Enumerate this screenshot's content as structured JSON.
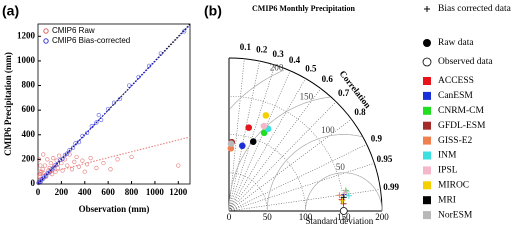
{
  "chart_data": [
    {
      "type": "scatter",
      "panel_label": "(a)",
      "xlabel": "Observation (mm)",
      "ylabel": "CMIP6 Precipitation (mm)",
      "xlim": [
        0,
        1300
      ],
      "ylim": [
        0,
        1300
      ],
      "xticks": [
        0,
        200,
        400,
        600,
        800,
        1000,
        1200
      ],
      "yticks": [
        0,
        200,
        400,
        600,
        800,
        1000,
        1200
      ],
      "series": [
        {
          "name": "CMIP6 Raw",
          "color": "#e06060",
          "x": [
            5,
            10,
            15,
            20,
            25,
            30,
            40,
            50,
            60,
            70,
            80,
            90,
            100,
            110,
            120,
            130,
            140,
            150,
            160,
            170,
            180,
            200,
            210,
            230,
            250,
            270,
            290,
            310,
            330,
            350,
            380,
            400,
            420,
            450,
            500,
            560,
            620,
            680,
            800,
            1200,
            20,
            8,
            45,
            12
          ],
          "y": [
            10,
            30,
            60,
            80,
            40,
            100,
            120,
            90,
            150,
            60,
            200,
            110,
            130,
            170,
            80,
            210,
            150,
            100,
            190,
            130,
            230,
            170,
            110,
            200,
            150,
            240,
            120,
            180,
            220,
            140,
            190,
            100,
            160,
            210,
            130,
            170,
            120,
            200,
            220,
            150,
            150,
            200,
            240,
            100
          ]
        },
        {
          "name": "CMIP6 Bias-corrected",
          "color": "#3a3adf",
          "x": [
            5,
            15,
            25,
            35,
            45,
            55,
            70,
            85,
            100,
            115,
            130,
            150,
            170,
            190,
            210,
            230,
            250,
            270,
            300,
            320,
            350,
            380,
            420,
            460,
            500,
            540,
            600,
            650,
            700,
            780,
            860,
            950,
            1050,
            1250,
            520
          ],
          "y": [
            8,
            18,
            20,
            38,
            44,
            60,
            68,
            90,
            95,
            118,
            128,
            152,
            165,
            195,
            205,
            235,
            248,
            275,
            295,
            330,
            340,
            390,
            415,
            470,
            500,
            520,
            610,
            660,
            690,
            800,
            870,
            960,
            1060,
            1240,
            560
          ]
        }
      ],
      "reference_lines": [
        {
          "slope": 1,
          "intercept": 0,
          "color": "#000000"
        },
        {
          "slope": 0.99,
          "intercept": 5,
          "color": "#2020e0"
        },
        {
          "slope": 0.24,
          "intercept": 70,
          "color": "#f08080"
        }
      ]
    },
    {
      "type": "taylor",
      "panel_label": "(b)",
      "title": "CMIP6 Monthly Precipitation",
      "xlabel": "Standard deviation",
      "angular_label": "Correlation",
      "xlim": [
        0,
        200
      ],
      "xticks": [
        0,
        50,
        100,
        150,
        200
      ],
      "corr_ticks": [
        0.1,
        0.2,
        0.3,
        0.4,
        0.5,
        0.6,
        0.7,
        0.8,
        0.9,
        0.95,
        0.99
      ],
      "rmsd_ticks": [
        50,
        100,
        150,
        200
      ],
      "bias_corrected": {
        "name": "Bias corrected data",
        "std": [
          148,
          152,
          155,
          150,
          146,
          158,
          153,
          149,
          151,
          156
        ],
        "corr": [
          0.995,
          0.99,
          0.985,
          0.998,
          0.99,
          0.992,
          0.988,
          0.996,
          0.993,
          0.987
        ]
      },
      "raw_name": "Raw data",
      "observed": {
        "name": "Observed data",
        "std": 150,
        "corr": 1
      },
      "models": [
        {
          "name": "ACCESS",
          "color": "#e8141c",
          "std": 112,
          "corr": 0.23
        },
        {
          "name": "CanESM",
          "color": "#1a2fd8",
          "std": 87,
          "corr": 0.2
        },
        {
          "name": "CNRM-CM",
          "color": "#22dd22",
          "std": 112,
          "corr": 0.41
        },
        {
          "name": "GFDL-ESM",
          "color": "#a52a2a",
          "std": 90,
          "corr": 0.04
        },
        {
          "name": "GISS-E2",
          "color": "#f08050",
          "std": 82,
          "corr": 0.03
        },
        {
          "name": "INM",
          "color": "#3de0e0",
          "std": 119,
          "corr": 0.43
        },
        {
          "name": "IPSL",
          "color": "#f5b8c8",
          "std": 120,
          "corr": 0.38
        },
        {
          "name": "MIROC",
          "color": "#f5d000",
          "std": 134,
          "corr": 0.36
        },
        {
          "name": "MRI",
          "color": "#000000",
          "std": 96,
          "corr": 0.33
        },
        {
          "name": "NorESM",
          "color": "#b8b8b8",
          "std": 88,
          "corr": 0.03
        }
      ]
    }
  ]
}
